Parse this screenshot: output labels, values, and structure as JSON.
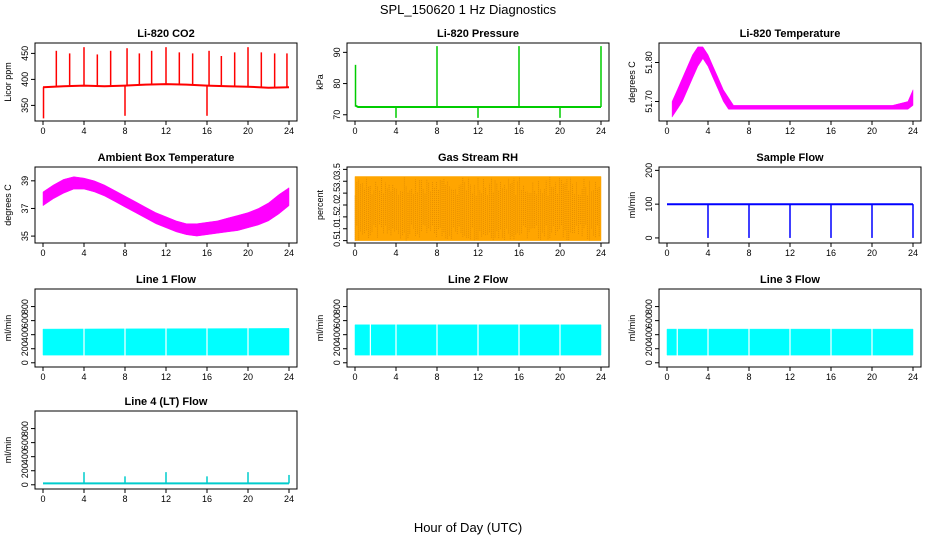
{
  "figure": {
    "title": "SPL_150620  1 Hz Diagnostics",
    "xlabel": "Hour of Day (UTC)"
  },
  "chart_data": [
    {
      "id": "co2",
      "type": "line",
      "title": "Li-820 CO2",
      "ylabel": "Licor ppm",
      "color": "#ff0000",
      "xlim": [
        0,
        24
      ],
      "ylim": [
        320,
        470
      ],
      "yticks": [
        350,
        400,
        450
      ],
      "ytick_labels": [
        "350",
        "400",
        "450"
      ],
      "xticks": [
        0,
        4,
        8,
        12,
        16,
        20,
        24
      ],
      "series": [
        {
          "x": [
            0,
            2,
            4,
            6,
            8,
            10,
            12,
            14,
            16,
            18,
            20,
            22,
            24
          ],
          "y": [
            385,
            387,
            388,
            387,
            388,
            390,
            391,
            390,
            388,
            387,
            386,
            384,
            385
          ]
        }
      ],
      "spikes": [
        {
          "x": 0.05,
          "y": 325
        },
        {
          "x": 1.3,
          "y": 455
        },
        {
          "x": 2.6,
          "y": 450
        },
        {
          "x": 4.0,
          "y": 462
        },
        {
          "x": 5.3,
          "y": 448
        },
        {
          "x": 6.6,
          "y": 455
        },
        {
          "x": 8.0,
          "y": 330
        },
        {
          "x": 8.2,
          "y": 460
        },
        {
          "x": 9.4,
          "y": 450
        },
        {
          "x": 10.6,
          "y": 455
        },
        {
          "x": 12.0,
          "y": 462
        },
        {
          "x": 13.3,
          "y": 452
        },
        {
          "x": 14.6,
          "y": 450
        },
        {
          "x": 16.0,
          "y": 330
        },
        {
          "x": 16.2,
          "y": 455
        },
        {
          "x": 17.4,
          "y": 445
        },
        {
          "x": 18.7,
          "y": 452
        },
        {
          "x": 20.0,
          "y": 462
        },
        {
          "x": 21.3,
          "y": 452
        },
        {
          "x": 22.6,
          "y": 450
        },
        {
          "x": 23.8,
          "y": 450
        }
      ]
    },
    {
      "id": "pressure",
      "type": "line",
      "title": "Li-820 Pressure",
      "ylabel": "kPa",
      "color": "#00cc00",
      "xlim": [
        0,
        24
      ],
      "ylim": [
        68,
        93
      ],
      "yticks": [
        70,
        80,
        90
      ],
      "ytick_labels": [
        "70",
        "80",
        "90"
      ],
      "xticks": [
        0,
        4,
        8,
        12,
        16,
        20,
        24
      ],
      "series": [
        {
          "x": [
            0,
            0.3,
            24
          ],
          "y": [
            73,
            72.5,
            72.5
          ]
        }
      ],
      "spikes": [
        {
          "x": 0.05,
          "y": 86
        },
        {
          "x": 4.0,
          "y": 69
        },
        {
          "x": 8.0,
          "y": 92
        },
        {
          "x": 12.0,
          "y": 69
        },
        {
          "x": 16.0,
          "y": 92
        },
        {
          "x": 20.0,
          "y": 69
        },
        {
          "x": 24.0,
          "y": 92
        }
      ]
    },
    {
      "id": "li820_temp",
      "type": "area",
      "title": "Li-820 Temperature",
      "ylabel": "degrees C",
      "color": "#ff00ff",
      "xlim": [
        0,
        24
      ],
      "ylim": [
        51.65,
        51.85
      ],
      "yticks": [
        51.7,
        51.8
      ],
      "ytick_labels": [
        "51.70",
        "51.80"
      ],
      "xticks": [
        0,
        4,
        8,
        12,
        16,
        20,
        24
      ],
      "series": [
        {
          "x": [
            0.5,
            1,
            1.5,
            2,
            2.5,
            3,
            3.5,
            4,
            4.5,
            5,
            5.5,
            6,
            6.5,
            8,
            10,
            12,
            14,
            16,
            18,
            20,
            22,
            23.5,
            24
          ],
          "lo": [
            51.66,
            51.68,
            51.7,
            51.73,
            51.76,
            51.79,
            51.81,
            51.79,
            51.76,
            51.73,
            51.7,
            51.68,
            51.68,
            51.68,
            51.68,
            51.68,
            51.68,
            51.68,
            51.68,
            51.68,
            51.68,
            51.68,
            51.69
          ],
          "hi": [
            51.7,
            51.73,
            51.76,
            51.79,
            51.82,
            51.84,
            51.84,
            51.82,
            51.79,
            51.76,
            51.73,
            51.71,
            51.69,
            51.69,
            51.69,
            51.69,
            51.69,
            51.69,
            51.69,
            51.69,
            51.69,
            51.7,
            51.73
          ]
        }
      ]
    },
    {
      "id": "box_temp",
      "type": "area",
      "title": "Ambient Box Temperature",
      "ylabel": "degrees C",
      "color": "#ff00ff",
      "xlim": [
        0,
        24
      ],
      "ylim": [
        34.5,
        40
      ],
      "yticks": [
        35,
        37,
        39
      ],
      "ytick_labels": [
        "35",
        "37",
        "39"
      ],
      "xticks": [
        0,
        4,
        8,
        12,
        16,
        20,
        24
      ],
      "series": [
        {
          "x": [
            0,
            1,
            2,
            3,
            4,
            5,
            6,
            7,
            8,
            9,
            10,
            11,
            12,
            13,
            14,
            15,
            16,
            17,
            18,
            19,
            20,
            21,
            22,
            23,
            24
          ],
          "lo": [
            37.2,
            37.7,
            38.1,
            38.4,
            38.4,
            38.2,
            37.9,
            37.5,
            37.1,
            36.7,
            36.3,
            35.9,
            35.6,
            35.3,
            35.1,
            35.0,
            35.1,
            35.2,
            35.3,
            35.4,
            35.6,
            35.8,
            36.1,
            36.6,
            37.2
          ],
          "hi": [
            38.2,
            38.7,
            39.1,
            39.3,
            39.2,
            39.0,
            38.7,
            38.3,
            37.9,
            37.5,
            37.1,
            36.7,
            36.4,
            36.1,
            35.9,
            35.9,
            36.0,
            36.1,
            36.3,
            36.5,
            36.7,
            37.0,
            37.4,
            38.0,
            38.5
          ]
        }
      ]
    },
    {
      "id": "rh",
      "type": "area",
      "title": "Gas Stream RH",
      "ylabel": "percent",
      "color": "#ffa500",
      "xlim": [
        0,
        24
      ],
      "ylim": [
        0.4,
        3.6
      ],
      "yticks": [
        0.5,
        1.0,
        1.5,
        2.0,
        2.5,
        3.0,
        3.5
      ],
      "ytick_labels": [
        "0.5",
        "1.0",
        "1.5",
        "2.0",
        "2.5",
        "3.0",
        "3.5"
      ],
      "xticks": [
        0,
        4,
        8,
        12,
        16,
        20,
        24
      ],
      "series": [
        {
          "x": [
            0,
            24
          ],
          "lo": [
            0.5,
            0.5
          ],
          "hi": [
            3.2,
            3.2
          ]
        }
      ]
    },
    {
      "id": "sample_flow",
      "type": "line",
      "title": "Sample Flow",
      "ylabel": "ml/min",
      "color": "#0000ff",
      "xlim": [
        0,
        24
      ],
      "ylim": [
        -15,
        210
      ],
      "yticks": [
        0,
        100,
        200
      ],
      "ytick_labels": [
        "0",
        "100",
        "200"
      ],
      "xticks": [
        0,
        4,
        8,
        12,
        16,
        20,
        24
      ],
      "series": [
        {
          "x": [
            0,
            24
          ],
          "y": [
            100,
            100
          ]
        }
      ],
      "dips": [
        {
          "x": 4.0,
          "y": 0
        },
        {
          "x": 8.0,
          "y": 0
        },
        {
          "x": 12.0,
          "y": 0
        },
        {
          "x": 16.0,
          "y": 0
        },
        {
          "x": 20.0,
          "y": 0
        },
        {
          "x": 24.0,
          "y": 0
        }
      ]
    },
    {
      "id": "line1",
      "type": "area",
      "title": "Line 1 Flow",
      "ylabel": "ml/min",
      "color": "#00ffff",
      "xlim": [
        0,
        24
      ],
      "ylim": [
        -60,
        1050
      ],
      "yticks": [
        0,
        200,
        400,
        600,
        800
      ],
      "ytick_labels": [
        "0",
        "200",
        "400",
        "600",
        "800"
      ],
      "xticks": [
        0,
        4,
        8,
        12,
        16,
        20,
        24
      ],
      "series": [
        {
          "x": [
            0,
            24
          ],
          "lo": [
            110,
            110
          ],
          "hi": [
            480,
            490
          ]
        }
      ],
      "gaps": [
        4.0,
        8.0,
        12.0,
        16.0,
        20.0
      ]
    },
    {
      "id": "line2",
      "type": "area",
      "title": "Line 2 Flow",
      "ylabel": "ml/min",
      "color": "#00ffff",
      "xlim": [
        0,
        24
      ],
      "ylim": [
        -60,
        1050
      ],
      "yticks": [
        0,
        200,
        400,
        600,
        800
      ],
      "ytick_labels": [
        "0",
        "200",
        "400",
        "600",
        "800"
      ],
      "xticks": [
        0,
        4,
        8,
        12,
        16,
        20,
        24
      ],
      "series": [
        {
          "x": [
            0,
            24
          ],
          "lo": [
            110,
            110
          ],
          "hi": [
            540,
            540
          ]
        }
      ],
      "gaps": [
        1.5,
        4.0,
        8.0,
        12.0,
        16.0,
        20.0
      ]
    },
    {
      "id": "line3",
      "type": "area",
      "title": "Line 3 Flow",
      "ylabel": "ml/min",
      "color": "#00ffff",
      "xlim": [
        0,
        24
      ],
      "ylim": [
        -60,
        1050
      ],
      "yticks": [
        0,
        200,
        400,
        600,
        800
      ],
      "ytick_labels": [
        "0",
        "200",
        "400",
        "600",
        "800"
      ],
      "xticks": [
        0,
        4,
        8,
        12,
        16,
        20,
        24
      ],
      "series": [
        {
          "x": [
            0,
            24
          ],
          "lo": [
            110,
            110
          ],
          "hi": [
            480,
            480
          ]
        }
      ],
      "gaps": [
        1.0,
        4.0,
        8.0,
        12.0,
        16.0,
        20.0
      ]
    },
    {
      "id": "line4",
      "type": "line",
      "title": "Line 4 (LT) Flow",
      "ylabel": "ml/min",
      "color": "#00cccc",
      "xlim": [
        0,
        24
      ],
      "ylim": [
        -60,
        1050
      ],
      "yticks": [
        0,
        200,
        400,
        600,
        800
      ],
      "ytick_labels": [
        "0",
        "200",
        "400",
        "600",
        "800"
      ],
      "xticks": [
        0,
        4,
        8,
        12,
        16,
        20,
        24
      ],
      "series": [
        {
          "x": [
            0,
            24
          ],
          "y": [
            20,
            20
          ]
        }
      ],
      "spikes": [
        {
          "x": 4.0,
          "y": 180
        },
        {
          "x": 8.0,
          "y": 120
        },
        {
          "x": 12.0,
          "y": 180
        },
        {
          "x": 16.0,
          "y": 120
        },
        {
          "x": 20.0,
          "y": 180
        },
        {
          "x": 24.0,
          "y": 140
        }
      ]
    }
  ]
}
